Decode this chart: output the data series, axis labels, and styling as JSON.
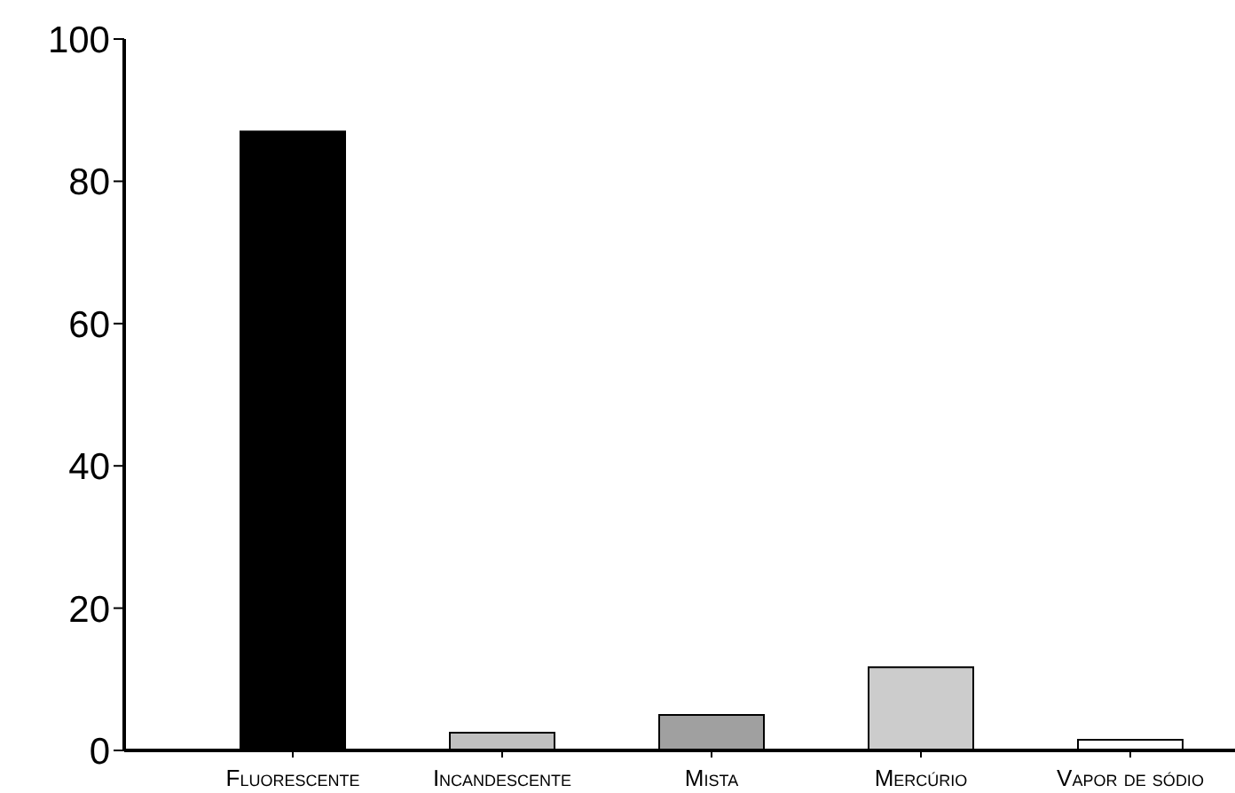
{
  "chart_data": {
    "type": "bar",
    "categories": [
      "Fluorescente",
      "Incandescente",
      "Mista",
      "Mercúrio",
      "Vapor de sódio"
    ],
    "values": [
      87,
      2.5,
      5,
      11.7,
      1.5
    ],
    "colors": [
      "#000000",
      "#c0c0c0",
      "#a0a0a0",
      "#cccccc",
      "#ffffff"
    ],
    "ylim": [
      0,
      100
    ],
    "yticks": [
      0,
      20,
      40,
      60,
      80,
      100
    ],
    "grid": false,
    "legend": false
  }
}
